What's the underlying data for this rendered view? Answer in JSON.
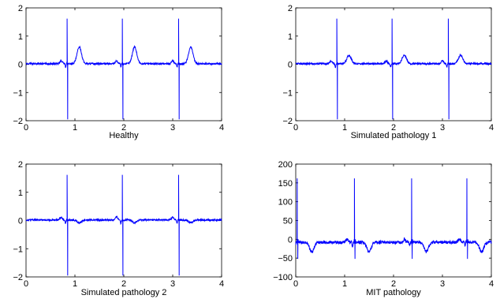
{
  "chart_data": [
    {
      "type": "line",
      "xlabel": "Healthy",
      "xlim": [
        0,
        4
      ],
      "ylim": [
        -2,
        2
      ],
      "xticks": [
        0,
        1,
        2,
        3,
        4
      ],
      "yticks": [
        -2,
        -1,
        0,
        1,
        2
      ],
      "color": "#0000ff",
      "beats": [
        0.84,
        1.97,
        3.12
      ],
      "baseline": 0.02,
      "r_peak": 1.62,
      "s_trough": -1.95,
      "p_wave": {
        "offset": -0.12,
        "amp": 0.1
      },
      "q_wave": {
        "offset": -0.03,
        "amp": -0.12
      },
      "t_wave": {
        "offset": 0.25,
        "amp": 0.6
      },
      "noise": 0.03
    },
    {
      "type": "line",
      "xlabel": "Simulated pathology 1",
      "xlim": [
        0,
        4
      ],
      "ylim": [
        -2,
        2
      ],
      "xticks": [
        0,
        1,
        2,
        3,
        4
      ],
      "yticks": [
        -2,
        -1,
        0,
        1,
        2
      ],
      "color": "#0000ff",
      "beats": [
        0.84,
        1.97,
        3.12
      ],
      "baseline": 0.02,
      "r_peak": 1.62,
      "s_trough": -1.95,
      "p_wave": {
        "offset": -0.12,
        "amp": 0.1
      },
      "q_wave": {
        "offset": -0.03,
        "amp": -0.12
      },
      "t_wave": {
        "offset": 0.25,
        "amp": 0.3
      },
      "noise": 0.03
    },
    {
      "type": "line",
      "xlabel": "Simulated pathology 2",
      "xlim": [
        0,
        4
      ],
      "ylim": [
        -2,
        2
      ],
      "xticks": [
        0,
        1,
        2,
        3,
        4
      ],
      "yticks": [
        -2,
        -1,
        0,
        1,
        2
      ],
      "color": "#0000ff",
      "beats": [
        0.84,
        1.97,
        3.12
      ],
      "baseline": 0.02,
      "r_peak": 1.62,
      "s_trough": -1.95,
      "p_wave": {
        "offset": -0.12,
        "amp": 0.1
      },
      "q_wave": {
        "offset": -0.03,
        "amp": -0.12
      },
      "t_wave": {
        "offset": 0.25,
        "amp": -0.1
      },
      "noise": 0.03
    },
    {
      "type": "line",
      "xlabel": "MIT pathology",
      "xlim": [
        0,
        4
      ],
      "ylim": [
        -100,
        200
      ],
      "xticks": [
        0,
        1,
        2,
        3,
        4
      ],
      "yticks": [
        -100,
        -50,
        0,
        50,
        100,
        150,
        200
      ],
      "color": "#0000ff",
      "beats": [
        0.03,
        1.2,
        2.37,
        3.5
      ],
      "baseline": 0,
      "r_peak": 162,
      "s_trough": -52,
      "p_wave": {
        "offset": -0.15,
        "amp": 8
      },
      "q_wave": {
        "offset": -0.04,
        "amp": -10
      },
      "t_wave": {
        "offset": 0.3,
        "amp": -25
      },
      "noise": 4
    }
  ]
}
